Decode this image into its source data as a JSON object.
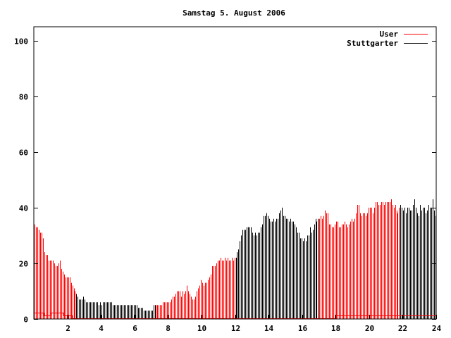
{
  "chart_data": {
    "type": "bar",
    "title": "Samstag 5. August 2006",
    "xlabel": "",
    "ylabel": "",
    "xlim": [
      0,
      24
    ],
    "ylim": [
      0,
      105
    ],
    "x_ticks": [
      "2",
      "4",
      "6",
      "8",
      "10",
      "12",
      "14",
      "16",
      "18",
      "20",
      "22",
      "24"
    ],
    "y_ticks": [
      "0",
      "20",
      "40",
      "60",
      "80",
      "100"
    ],
    "legend_position": "top-right",
    "interval_minutes": 5,
    "series": [
      {
        "name": "User",
        "style": "line",
        "color": "#ff0000",
        "points": [
          [
            0,
            2
          ],
          [
            0.6,
            2
          ],
          [
            0.6,
            1
          ],
          [
            1.0,
            1
          ],
          [
            1.0,
            2
          ],
          [
            1.8,
            2
          ],
          [
            1.8,
            1
          ],
          [
            2.3,
            1
          ],
          [
            2.3,
            0
          ],
          [
            18,
            0
          ],
          [
            18,
            1
          ],
          [
            24,
            1
          ]
        ]
      },
      {
        "name": "Stuttgarter",
        "style": "impulses",
        "color": "#000000",
        "highlight_color": "#ff0000",
        "highlight_ranges_hours": [
          [
            0,
            2.5
          ],
          [
            7.25,
            12
          ],
          [
            17,
            21.8
          ]
        ],
        "values": [
          34,
          33,
          33,
          32,
          31,
          31,
          29,
          24,
          23,
          23,
          21,
          21,
          21,
          21,
          20,
          19,
          19,
          20,
          21,
          18,
          17,
          16,
          15,
          15,
          15,
          15,
          13,
          12,
          11,
          10,
          9,
          8,
          7,
          7,
          7,
          8,
          7,
          6,
          6,
          6,
          6,
          6,
          6,
          6,
          6,
          6,
          5,
          6,
          5,
          6,
          6,
          6,
          6,
          6,
          6,
          6,
          5,
          5,
          5,
          5,
          5,
          5,
          5,
          5,
          5,
          5,
          5,
          5,
          5,
          5,
          5,
          5,
          5,
          5,
          4,
          4,
          4,
          4,
          3,
          3,
          3,
          3,
          3,
          3,
          3,
          5,
          5,
          5,
          5,
          5,
          5,
          5,
          6,
          6,
          6,
          6,
          6,
          6,
          7,
          8,
          8,
          9,
          10,
          10,
          10,
          8,
          10,
          9,
          10,
          12,
          10,
          9,
          8,
          7,
          7,
          8,
          10,
          11,
          12,
          14,
          13,
          12,
          13,
          13,
          14,
          15,
          16,
          19,
          19,
          19,
          20,
          21,
          21,
          22,
          21,
          21,
          22,
          21,
          22,
          21,
          21,
          22,
          21,
          22,
          22,
          24,
          25,
          28,
          30,
          32,
          32,
          32,
          33,
          33,
          33,
          33,
          31,
          30,
          31,
          30,
          31,
          31,
          33,
          34,
          37,
          37,
          38,
          37,
          36,
          35,
          35,
          36,
          35,
          36,
          36,
          38,
          39,
          40,
          37,
          37,
          36,
          36,
          35,
          36,
          35,
          35,
          34,
          33,
          31,
          31,
          29,
          29,
          28,
          29,
          28,
          30,
          30,
          33,
          31,
          32,
          34,
          36,
          35,
          36,
          36,
          37,
          36,
          37,
          39,
          38,
          38,
          34,
          34,
          33,
          33,
          34,
          35,
          35,
          33,
          33,
          34,
          34,
          35,
          34,
          33,
          34,
          35,
          36,
          35,
          36,
          38,
          41,
          41,
          38,
          37,
          38,
          38,
          37,
          38,
          40,
          40,
          40,
          38,
          40,
          42,
          42,
          41,
          41,
          42,
          42,
          41,
          42,
          42,
          42,
          42,
          43,
          41,
          40,
          41,
          39,
          38,
          40,
          41,
          40,
          39,
          40,
          38,
          40,
          40,
          39,
          39,
          41,
          43,
          40,
          38,
          37,
          41,
          39,
          40,
          40,
          38,
          39,
          41,
          40,
          40,
          43,
          39,
          37
        ]
      }
    ]
  }
}
